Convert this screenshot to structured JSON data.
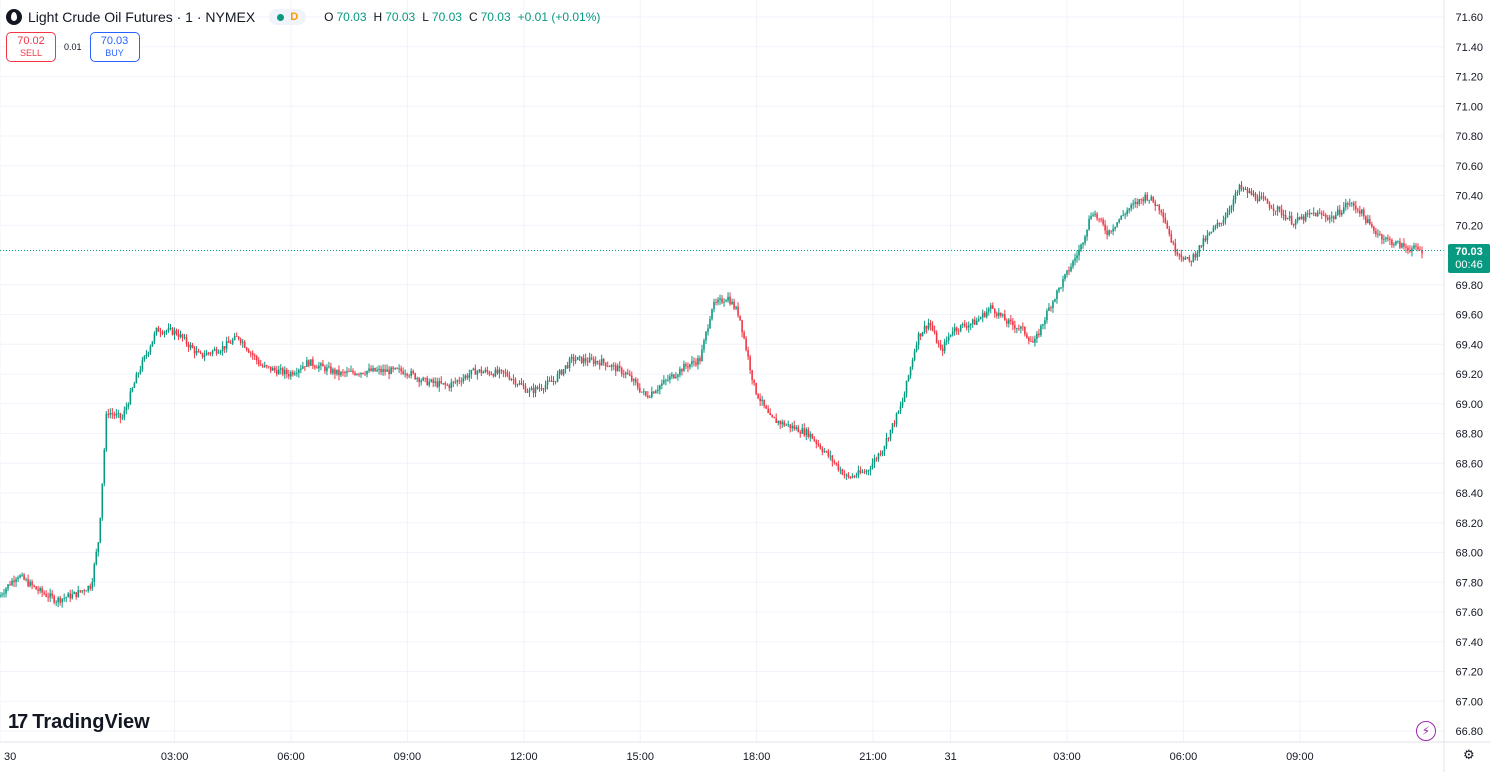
{
  "header": {
    "symbol_title": "Light Crude Oil Futures · 1 · NYMEX",
    "delay_badge": "D",
    "ohlc": {
      "o_label": "O",
      "o_value": "70.03",
      "h_label": "H",
      "h_value": "70.03",
      "l_label": "L",
      "l_value": "70.03",
      "c_label": "C",
      "c_value": "70.03",
      "change": "+0.01 (+0.01%)"
    }
  },
  "trade": {
    "sell_price": "70.02",
    "sell_label": "SELL",
    "spread": "0.01",
    "buy_price": "70.03",
    "buy_label": "BUY"
  },
  "last_price": {
    "price": "70.03",
    "countdown": "00:46"
  },
  "branding": {
    "logo_mark": "17",
    "logo_text": "TradingView"
  },
  "icons": {
    "bolt": "lightning-icon",
    "settings": "gear-icon"
  },
  "colors": {
    "up": "#089981",
    "down": "#f23645",
    "grid": "#f0f3fa",
    "text": "#131722",
    "accent": "#9c27b0"
  },
  "chart_data": {
    "type": "candlestick",
    "title": "Light Crude Oil Futures · 1 · NYMEX",
    "ylim": [
      66.76,
      71.64
    ],
    "y_ticks": [
      "71.60",
      "71.40",
      "71.20",
      "71.00",
      "70.80",
      "70.60",
      "70.40",
      "70.20",
      "70.00",
      "69.80",
      "69.60",
      "69.40",
      "69.20",
      "69.00",
      "68.80",
      "68.60",
      "68.40",
      "68.20",
      "68.00",
      "67.80",
      "67.60",
      "67.40",
      "67.20",
      "67.00",
      "66.80"
    ],
    "x_ticks": [
      {
        "label": "30",
        "hour": 0
      },
      {
        "label": "03:00",
        "hour": 4.5
      },
      {
        "label": "06:00",
        "hour": 7.5
      },
      {
        "label": "09:00",
        "hour": 10.5
      },
      {
        "label": "12:00",
        "hour": 13.5
      },
      {
        "label": "15:00",
        "hour": 16.5
      },
      {
        "label": "18:00",
        "hour": 19.5
      },
      {
        "label": "21:00",
        "hour": 22.5
      },
      {
        "label": "31",
        "hour": 24.5
      },
      {
        "label": "03:00",
        "hour": 27.5
      },
      {
        "label": "06:00",
        "hour": 30.5
      },
      {
        "label": "09:00",
        "hour": 33.5
      }
    ],
    "x_range_hours": [
      0,
      35.5
    ],
    "price_path": [
      {
        "h": 0.0,
        "p": 67.7
      },
      {
        "h": 0.5,
        "p": 67.85
      },
      {
        "h": 1.0,
        "p": 67.75
      },
      {
        "h": 1.5,
        "p": 67.68
      },
      {
        "h": 2.0,
        "p": 67.72
      },
      {
        "h": 2.4,
        "p": 67.78
      },
      {
        "h": 2.6,
        "p": 68.1
      },
      {
        "h": 2.8,
        "p": 68.95
      },
      {
        "h": 3.2,
        "p": 68.9
      },
      {
        "h": 3.6,
        "p": 69.2
      },
      {
        "h": 4.1,
        "p": 69.5
      },
      {
        "h": 4.6,
        "p": 69.48
      },
      {
        "h": 5.2,
        "p": 69.32
      },
      {
        "h": 5.8,
        "p": 69.38
      },
      {
        "h": 6.2,
        "p": 69.45
      },
      {
        "h": 6.8,
        "p": 69.25
      },
      {
        "h": 7.5,
        "p": 69.2
      },
      {
        "h": 8.0,
        "p": 69.28
      },
      {
        "h": 8.8,
        "p": 69.2
      },
      {
        "h": 9.5,
        "p": 69.22
      },
      {
        "h": 10.5,
        "p": 69.22
      },
      {
        "h": 11.0,
        "p": 69.15
      },
      {
        "h": 11.6,
        "p": 69.12
      },
      {
        "h": 12.3,
        "p": 69.22
      },
      {
        "h": 13.1,
        "p": 69.2
      },
      {
        "h": 13.7,
        "p": 69.08
      },
      {
        "h": 14.3,
        "p": 69.15
      },
      {
        "h": 14.8,
        "p": 69.3
      },
      {
        "h": 15.6,
        "p": 69.28
      },
      {
        "h": 16.2,
        "p": 69.2
      },
      {
        "h": 16.7,
        "p": 69.05
      },
      {
        "h": 17.2,
        "p": 69.15
      },
      {
        "h": 17.7,
        "p": 69.25
      },
      {
        "h": 18.1,
        "p": 69.3
      },
      {
        "h": 18.4,
        "p": 69.65
      },
      {
        "h": 18.8,
        "p": 69.72
      },
      {
        "h": 19.1,
        "p": 69.6
      },
      {
        "h": 19.5,
        "p": 69.1
      },
      {
        "h": 19.9,
        "p": 68.9
      },
      {
        "h": 20.4,
        "p": 68.85
      },
      {
        "h": 20.9,
        "p": 68.8
      },
      {
        "h": 21.4,
        "p": 68.65
      },
      {
        "h": 21.9,
        "p": 68.5
      },
      {
        "h": 22.4,
        "p": 68.55
      },
      {
        "h": 22.8,
        "p": 68.7
      },
      {
        "h": 23.3,
        "p": 69.0
      },
      {
        "h": 23.7,
        "p": 69.45
      },
      {
        "h": 24.0,
        "p": 69.55
      },
      {
        "h": 24.3,
        "p": 69.35
      },
      {
        "h": 24.6,
        "p": 69.5
      },
      {
        "h": 25.2,
        "p": 69.55
      },
      {
        "h": 25.6,
        "p": 69.65
      },
      {
        "h": 26.0,
        "p": 69.55
      },
      {
        "h": 26.4,
        "p": 69.5
      },
      {
        "h": 26.7,
        "p": 69.4
      },
      {
        "h": 27.1,
        "p": 69.65
      },
      {
        "h": 27.5,
        "p": 69.85
      },
      {
        "h": 27.9,
        "p": 70.05
      },
      {
        "h": 28.2,
        "p": 70.3
      },
      {
        "h": 28.6,
        "p": 70.15
      },
      {
        "h": 29.1,
        "p": 70.3
      },
      {
        "h": 29.6,
        "p": 70.4
      },
      {
        "h": 30.0,
        "p": 70.3
      },
      {
        "h": 30.3,
        "p": 70.05
      },
      {
        "h": 30.7,
        "p": 69.95
      },
      {
        "h": 31.1,
        "p": 70.1
      },
      {
        "h": 31.6,
        "p": 70.25
      },
      {
        "h": 32.0,
        "p": 70.45
      },
      {
        "h": 32.5,
        "p": 70.38
      },
      {
        "h": 33.0,
        "p": 70.3
      },
      {
        "h": 33.4,
        "p": 70.22
      },
      {
        "h": 33.9,
        "p": 70.28
      },
      {
        "h": 34.4,
        "p": 70.25
      },
      {
        "h": 34.8,
        "p": 70.35
      },
      {
        "h": 35.1,
        "p": 70.3
      },
      {
        "h": 35.4,
        "p": 70.18
      },
      {
        "h": 35.8,
        "p": 70.1
      },
      {
        "h": 36.3,
        "p": 70.05
      },
      {
        "h": 36.7,
        "p": 70.03
      }
    ]
  }
}
